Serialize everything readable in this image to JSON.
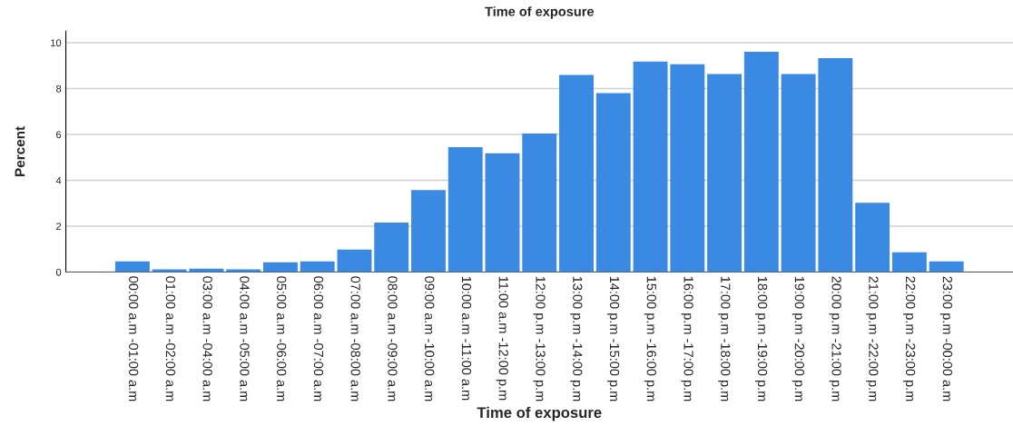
{
  "chart_data": {
    "type": "bar",
    "title": "Time of exposure",
    "xlabel": "Time of exposure",
    "ylabel": "Percent",
    "categories": [
      "00:00 a.m -01:00 a.m",
      "01:00 a.m -02:00 a.m",
      "03:00 a.m -04:00 a.m",
      "04:00 a.m -05:00 a.m",
      "05:00 a.m -06:00 a.m",
      "06:00 a.m -07:00 a.m",
      "07:00 a.m -08:00 a.m",
      "08:00 a.m -09:00 a.m",
      "09:00 a.m -10:00 a.m",
      "10:00 a.m -11:00 a.m",
      "11:00 a.m -12:00 p.m",
      "12:00 p.m -13:00 p.m",
      "13:00 p.m -14:00 p.m",
      "14:00 p.m -15:00 p.m",
      "15:00 p.m -16:00 p.m",
      "16:00 p.m -17:00 p.m",
      "17:00 p.m -18:00 p.m",
      "18:00 p.m -19:00 p.m",
      "19:00 p.m -20:00 p.m",
      "20:00 p.m -21:00 p.m",
      "21:00 p.m -22:00 p.m",
      "22:00 p.m -23:00 p.m",
      "23:00 p.m -00:00 a.m"
    ],
    "values": [
      0.47,
      0.12,
      0.15,
      0.12,
      0.43,
      0.47,
      0.98,
      2.16,
      3.57,
      5.45,
      5.18,
      6.04,
      8.59,
      7.8,
      9.18,
      9.06,
      8.63,
      9.6,
      8.63,
      9.33,
      3.02,
      0.86,
      0.47
    ],
    "color": "#3a8ae4",
    "ylim": [
      0,
      10.5
    ],
    "yticks": [
      0,
      2,
      4,
      6,
      8,
      10
    ],
    "grid": "y",
    "legend": false
  }
}
